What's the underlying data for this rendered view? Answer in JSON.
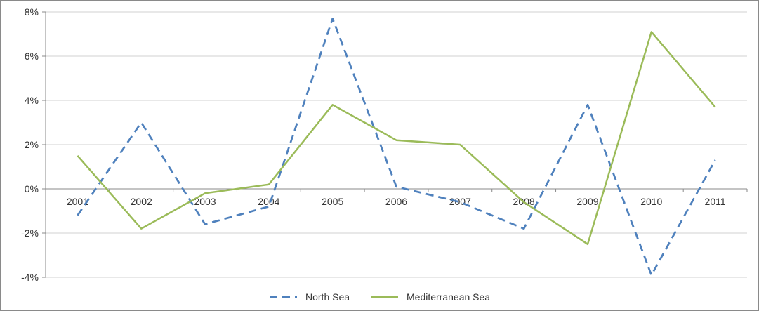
{
  "chart_data": {
    "type": "line",
    "title": "",
    "xlabel": "",
    "ylabel": "",
    "categories": [
      "2001",
      "2002",
      "2003",
      "2004",
      "2005",
      "2006",
      "2007",
      "2008",
      "2009",
      "2010",
      "2011"
    ],
    "ylim": [
      -0.04,
      0.08
    ],
    "y_ticks": [
      {
        "value": 0.08,
        "label": "8%"
      },
      {
        "value": 0.06,
        "label": "6%"
      },
      {
        "value": 0.04,
        "label": "4%"
      },
      {
        "value": 0.02,
        "label": "2%"
      },
      {
        "value": 0.0,
        "label": "0%"
      },
      {
        "value": -0.02,
        "label": "-2%"
      },
      {
        "value": -0.04,
        "label": "-4%"
      }
    ],
    "grid": true,
    "legend_position": "bottom",
    "series": [
      {
        "name": "North Sea",
        "style": "dashed",
        "color": "#4f81bd",
        "values": [
          -0.012,
          0.03,
          -0.016,
          -0.008,
          0.077,
          0.001,
          -0.006,
          -0.018,
          0.038,
          -0.039,
          0.013
        ]
      },
      {
        "name": "Mediterranean Sea",
        "style": "solid",
        "color": "#9bbb59",
        "values": [
          0.015,
          -0.018,
          -0.002,
          0.002,
          0.038,
          0.022,
          0.02,
          -0.006,
          -0.025,
          0.071,
          0.037
        ]
      }
    ]
  }
}
